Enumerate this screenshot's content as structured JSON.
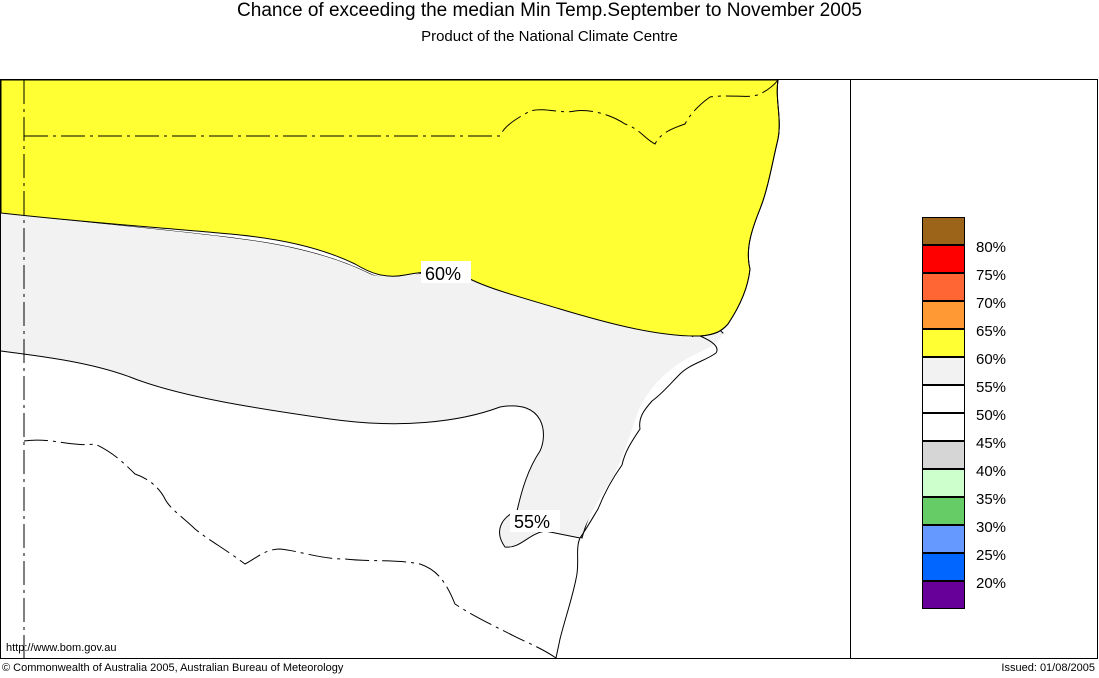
{
  "header": {
    "title": "Chance of exceeding the median Min Temp.September to November 2005",
    "subtitle": "Product of the National Climate Centre"
  },
  "map": {
    "contour_labels": {
      "upper": "60%",
      "lower": "55%"
    },
    "region_colors": {
      "above_60": "#ffff33",
      "between_55_60": "#f2f2f2",
      "below_55": "#ffffff"
    }
  },
  "legend": {
    "swatches": [
      "#9c6418",
      "#ff0000",
      "#ff6633",
      "#ff9933",
      "#ffff33",
      "#f2f2f2",
      "#ffffff",
      "#ffffff",
      "#d6d6d6",
      "#ccffcc",
      "#66cc66",
      "#6699ff",
      "#0066ff",
      "#660099"
    ],
    "labels": [
      "80%",
      "75%",
      "70%",
      "65%",
      "60%",
      "55%",
      "50%",
      "45%",
      "40%",
      "35%",
      "30%",
      "25%",
      "20%"
    ]
  },
  "footer": {
    "url": "http://www.bom.gov.au",
    "copyright": "© Commonwealth of Australia 2005, Australian Bureau of Meteorology",
    "issued": "Issued: 01/08/2005"
  }
}
